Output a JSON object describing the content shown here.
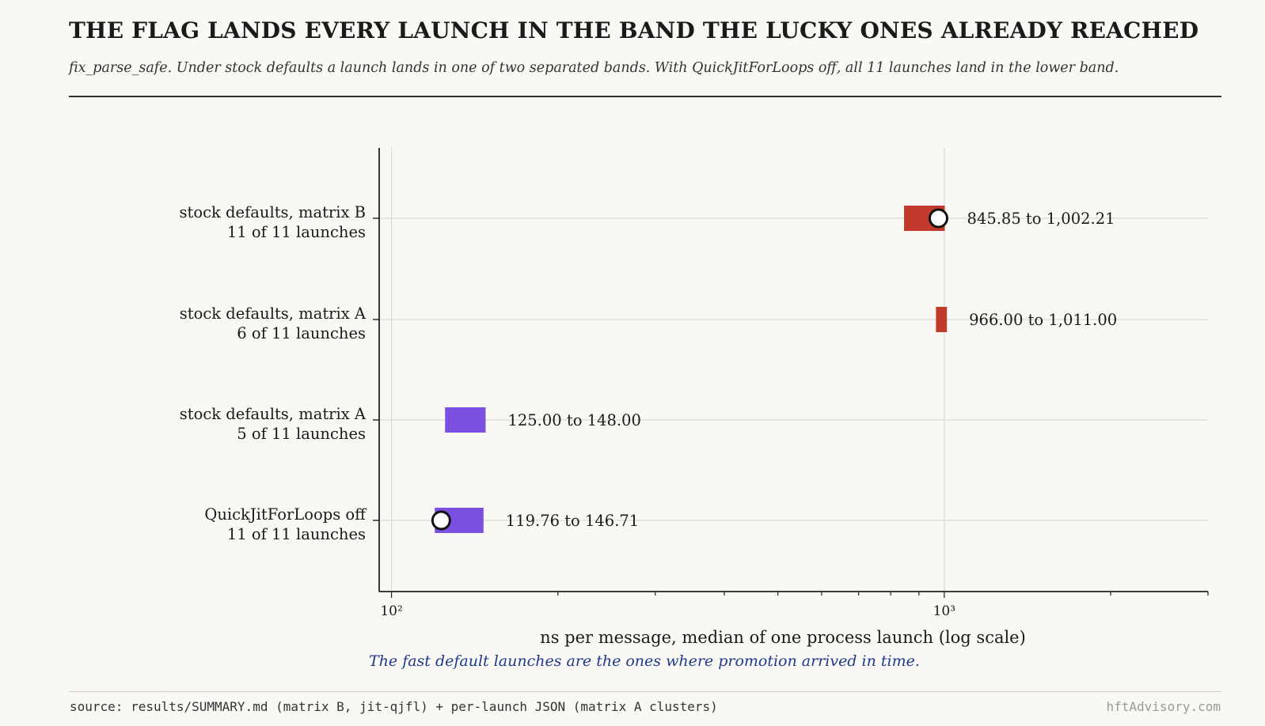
{
  "header": {
    "title": "THE FLAG LANDS EVERY LAUNCH IN THE BAND THE LUCKY ONES ALREADY REACHED",
    "subtitle": "fix_parse_safe. Under stock defaults a launch lands in one of two separated bands. With QuickJitForLoops off, all 11 launches land in the lower band."
  },
  "chart_data": {
    "type": "range-bar",
    "xlabel": "ns per message, median of one process launch (log scale)",
    "xscale": "log",
    "xlim": [
      95,
      3000
    ],
    "xticks": [
      {
        "value": 100,
        "label": "10²"
      },
      {
        "value": 1000,
        "label": "10³"
      }
    ],
    "grid": true,
    "annotation": "The fast default launches are the ones where promotion arrived in time.",
    "rows": [
      {
        "label": "stock defaults, matrix B",
        "sublabel": "11 of 11 launches",
        "low": 845.85,
        "high": 1002.21,
        "marker": 976,
        "range_label": "845.85 to 1,002.21",
        "color": "#c0392b"
      },
      {
        "label": "stock defaults, matrix A",
        "sublabel": "6 of 11 launches",
        "low": 966.0,
        "high": 1011.0,
        "marker": null,
        "range_label": "966.00 to 1,011.00",
        "color": "#c0392b"
      },
      {
        "label": "stock defaults, matrix A",
        "sublabel": "5 of 11 launches",
        "low": 125.0,
        "high": 148.0,
        "marker": null,
        "range_label": "125.00 to 148.00",
        "color": "#7b4fe0"
      },
      {
        "label": "QuickJitForLoops off",
        "sublabel": "11 of 11 launches",
        "low": 119.76,
        "high": 146.71,
        "marker": 123,
        "range_label": "119.76 to 146.71",
        "color": "#7b4fe0"
      }
    ]
  },
  "footer": {
    "source": "source: results/SUMMARY.md (matrix B, jit-qjfl) + per-launch JSON (matrix A clusters)",
    "brand": "hftAdvisory.com"
  }
}
